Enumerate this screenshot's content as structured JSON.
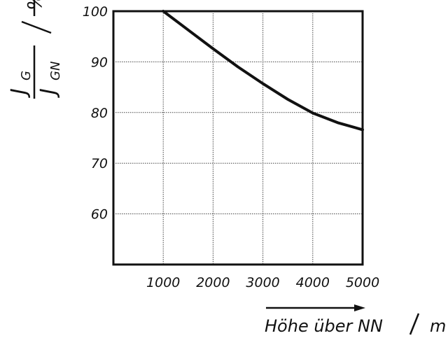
{
  "chart_data": {
    "type": "line",
    "title": "",
    "xlabel": "Höhe über NN",
    "xunit": "m",
    "ylabel": {
      "numerator": "J",
      "numerator_sub": "G",
      "denominator": "J",
      "denominator_sub": "GN",
      "unit": "%"
    },
    "xlim": [
      0,
      5000
    ],
    "ylim": [
      50,
      100
    ],
    "xticks": [
      1000,
      2000,
      3000,
      4000,
      5000
    ],
    "yticks": [
      60,
      70,
      80,
      90,
      100
    ],
    "grid": true,
    "series": [
      {
        "x": [
          1000,
          1500,
          2000,
          2500,
          3000,
          3500,
          4000,
          4500,
          5000
        ],
        "y": [
          100,
          96.3,
          92.6,
          89,
          85.7,
          82.6,
          79.9,
          78,
          76.6
        ]
      }
    ]
  }
}
